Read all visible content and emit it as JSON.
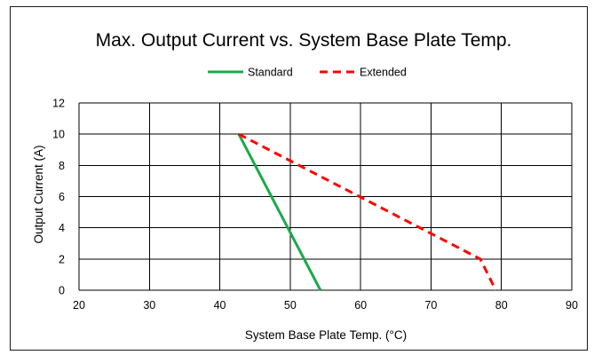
{
  "chart_data": {
    "type": "line",
    "title": "Max. Output Current vs. System Base Plate Temp.",
    "xlabel": "System Base Plate Temp. (°C)",
    "ylabel": "Output Current (A)",
    "xlim": [
      20,
      90
    ],
    "ylim": [
      0,
      12
    ],
    "x_ticks": [
      20,
      30,
      40,
      50,
      60,
      70,
      80,
      90
    ],
    "y_ticks": [
      0,
      2,
      4,
      6,
      8,
      10,
      12
    ],
    "grid": true,
    "legend_position": "top",
    "series": [
      {
        "name": "Standard",
        "color": "#1aaa4a",
        "style": "solid",
        "x": [
          42.7,
          54.3
        ],
        "y": [
          10,
          0
        ]
      },
      {
        "name": "Extended",
        "color": "#ff0000",
        "style": "dashed",
        "x": [
          42.7,
          77,
          79.2
        ],
        "y": [
          10,
          2,
          0
        ]
      }
    ]
  }
}
